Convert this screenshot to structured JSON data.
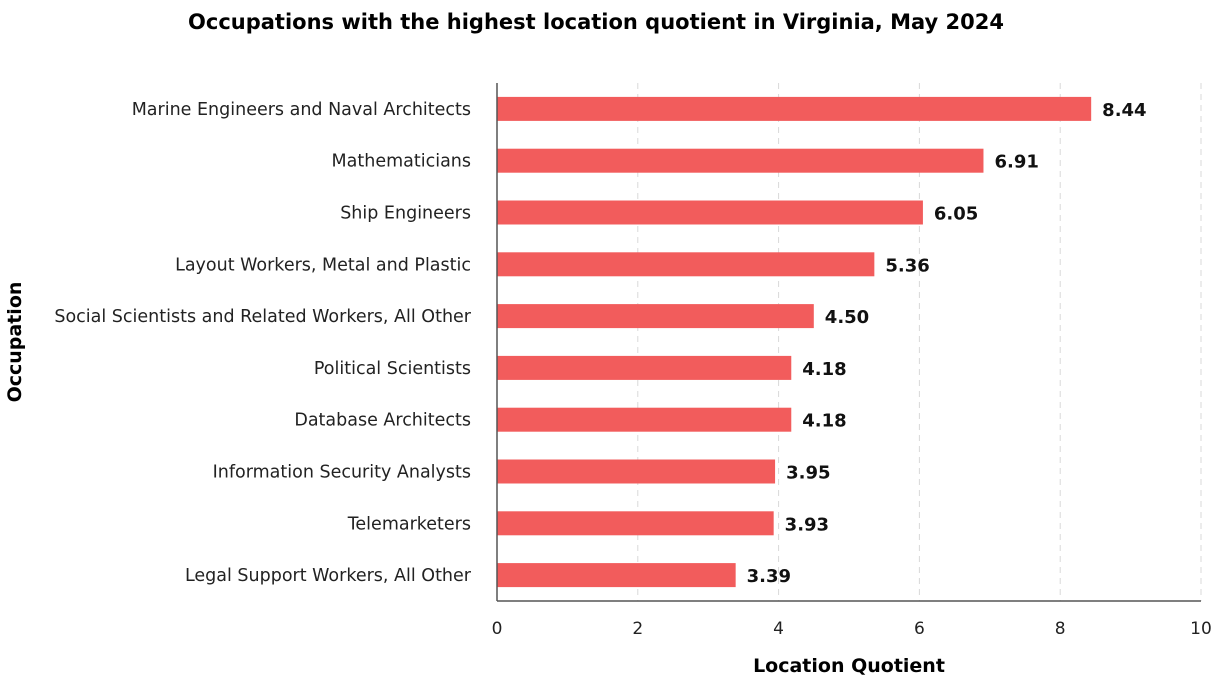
{
  "chart_data": {
    "type": "bar",
    "orientation": "horizontal",
    "title": "Occupations with the highest location quotient in Virginia, May 2024",
    "xlabel": "Location Quotient",
    "ylabel": "Occupation",
    "xlim": [
      0,
      10
    ],
    "xticks": [
      "0",
      "2",
      "4",
      "6",
      "8",
      "10"
    ],
    "grid": true,
    "legend": "none",
    "bar_color": "#f25c5c",
    "categories": [
      "Marine Engineers and Naval Architects",
      "Mathematicians",
      "Ship Engineers",
      "Layout Workers, Metal and Plastic",
      "Social Scientists and Related Workers, All Other",
      "Political Scientists",
      "Database Architects",
      "Information Security Analysts",
      "Telemarketers",
      "Legal Support Workers, All Other"
    ],
    "values": [
      8.44,
      6.91,
      6.05,
      5.36,
      4.5,
      4.18,
      4.18,
      3.95,
      3.93,
      3.39
    ],
    "value_labels": [
      "8.44",
      "6.91",
      "6.05",
      "5.36",
      "4.50",
      "4.18",
      "4.18",
      "3.95",
      "3.93",
      "3.39"
    ]
  }
}
